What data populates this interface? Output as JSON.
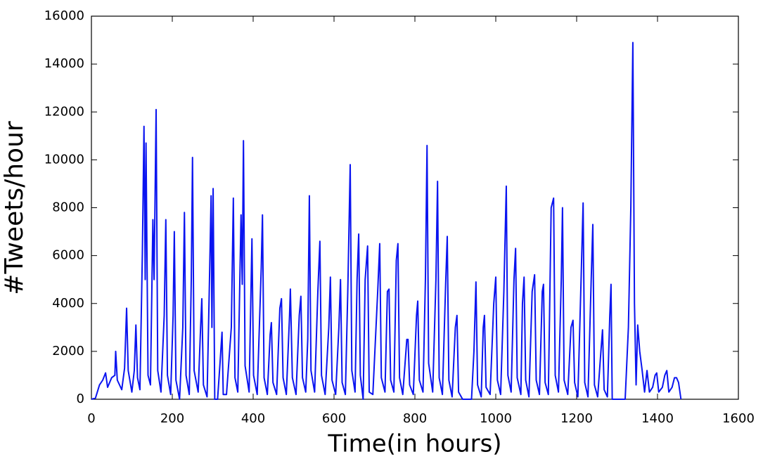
{
  "chart_data": {
    "type": "line",
    "x_label": "Time(in hours)",
    "y_label": "#Tweets/hour",
    "color": "#0a14f0",
    "xlim": [
      0,
      1600
    ],
    "xticks": [
      0,
      200,
      400,
      600,
      800,
      1000,
      1200,
      1400,
      1600
    ],
    "ylim": [
      0,
      16000
    ],
    "yticks": [
      0,
      2000,
      4000,
      6000,
      8000,
      10000,
      12000,
      14000,
      16000
    ],
    "x": [
      0,
      10,
      20,
      28,
      35,
      40,
      50,
      58,
      60,
      64,
      75,
      82,
      87,
      91,
      100,
      106,
      110,
      114,
      120,
      126,
      130,
      133,
      135,
      140,
      146,
      152,
      155,
      160,
      164,
      172,
      180,
      184,
      188,
      196,
      202,
      205,
      209,
      218,
      226,
      230,
      234,
      242,
      247,
      250,
      254,
      264,
      270,
      273,
      277,
      286,
      292,
      296,
      298,
      301,
      305,
      312,
      318,
      323,
      326,
      334,
      346,
      351,
      355,
      362,
      370,
      373,
      376,
      380,
      390,
      394,
      397,
      401,
      410,
      420,
      423,
      427,
      435,
      442,
      445,
      449,
      458,
      466,
      470,
      474,
      482,
      490,
      492,
      497,
      506,
      514,
      518,
      522,
      530,
      535,
      539,
      543,
      552,
      560,
      565,
      569,
      578,
      587,
      591,
      595,
      604,
      612,
      616,
      620,
      628,
      634,
      640,
      644,
      652,
      657,
      661,
      665,
      672,
      677,
      683,
      687,
      696,
      708,
      713,
      717,
      726,
      732,
      736,
      740,
      748,
      754,
      758,
      762,
      770,
      780,
      783,
      787,
      796,
      804,
      807,
      811,
      820,
      826,
      830,
      834,
      844,
      852,
      856,
      860,
      868,
      876,
      880,
      884,
      892,
      900,
      904,
      908,
      918,
      930,
      940,
      946,
      951,
      955,
      964,
      969,
      972,
      976,
      986,
      995,
      1000,
      1004,
      1012,
      1020,
      1026,
      1030,
      1038,
      1045,
      1049,
      1053,
      1062,
      1066,
      1070,
      1074,
      1082,
      1090,
      1096,
      1100,
      1108,
      1115,
      1118,
      1122,
      1130,
      1137,
      1143,
      1147,
      1155,
      1162,
      1165,
      1169,
      1178,
      1186,
      1191,
      1195,
      1203,
      1211,
      1216,
      1220,
      1228,
      1236,
      1240,
      1244,
      1252,
      1260,
      1264,
      1268,
      1276,
      1282,
      1285,
      1288,
      1300,
      1310,
      1320,
      1328,
      1334,
      1339,
      1343,
      1347,
      1351,
      1356,
      1362,
      1368,
      1374,
      1380,
      1388,
      1394,
      1398,
      1403,
      1412,
      1418,
      1423,
      1428,
      1436,
      1442,
      1447,
      1452,
      1458
    ],
    "values": [
      0,
      50,
      600,
      800,
      1100,
      500,
      900,
      1000,
      2000,
      800,
      400,
      1300,
      3800,
      1200,
      300,
      1200,
      3100,
      900,
      400,
      6100,
      11400,
      5000,
      10700,
      1000,
      600,
      7500,
      5000,
      12100,
      1200,
      300,
      3500,
      7500,
      1000,
      200,
      3500,
      7000,
      800,
      0,
      3000,
      7800,
      1000,
      200,
      5000,
      10100,
      1200,
      300,
      3000,
      4200,
      600,
      100,
      5000,
      8500,
      3000,
      8800,
      0,
      0,
      1500,
      2800,
      200,
      200,
      3000,
      8400,
      900,
      300,
      7700,
      4800,
      10800,
      1400,
      300,
      4000,
      6700,
      1000,
      200,
      5500,
      7700,
      900,
      200,
      2700,
      3200,
      700,
      200,
      3800,
      4200,
      900,
      200,
      3500,
      4600,
      900,
      200,
      3500,
      4300,
      900,
      300,
      2500,
      8500,
      1200,
      300,
      4500,
      6600,
      1000,
      200,
      3000,
      5100,
      800,
      200,
      3000,
      5000,
      700,
      200,
      4500,
      9800,
      1200,
      300,
      5000,
      6900,
      1000,
      0,
      5000,
      6400,
      300,
      200,
      4500,
      6500,
      900,
      300,
      4500,
      4600,
      800,
      300,
      5800,
      6500,
      900,
      200,
      2500,
      2500,
      600,
      200,
      3500,
      4100,
      800,
      300,
      5000,
      10600,
      1500,
      300,
      5000,
      9100,
      900,
      200,
      4800,
      6800,
      800,
      100,
      3000,
      3500,
      300,
      0,
      0,
      0,
      2000,
      4900,
      600,
      100,
      3000,
      3500,
      500,
      200,
      4000,
      5100,
      800,
      200,
      4500,
      8900,
      1000,
      300,
      5000,
      6300,
      900,
      200,
      4000,
      5100,
      800,
      100,
      4500,
      5200,
      800,
      200,
      4500,
      4800,
      700,
      200,
      8000,
      8400,
      1000,
      300,
      5000,
      8000,
      800,
      200,
      3000,
      3300,
      700,
      100,
      5000,
      8200,
      700,
      100,
      5000,
      7300,
      600,
      100,
      2000,
      2900,
      400,
      100,
      3500,
      4800,
      0,
      0,
      0,
      0,
      3000,
      8000,
      14900,
      4000,
      600,
      3100,
      2000,
      1200,
      300,
      1200,
      300,
      500,
      1000,
      1100,
      300,
      500,
      1000,
      1200,
      300,
      500,
      900,
      900,
      700,
      0
    ]
  }
}
